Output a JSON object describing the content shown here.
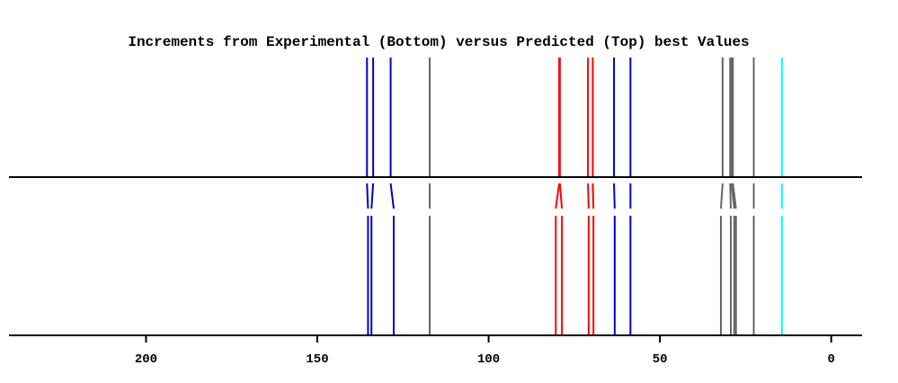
{
  "chart_data": {
    "type": "line",
    "title": "Increments from Experimental (Bottom) versus Predicted (Top) best Values",
    "xlabel": "",
    "ylabel": "",
    "xlim": [
      240,
      -9
    ],
    "x_ticks": [
      200,
      150,
      100,
      50,
      0
    ],
    "x_tick_labels": [
      "200",
      "150",
      "100",
      "50",
      "0"
    ],
    "reversed_x_axis": true,
    "grid": false,
    "legend": "none",
    "pairs": [
      {
        "predicted": 135.5,
        "experimental": 135.2,
        "color": "#0000cc"
      },
      {
        "predicted": 133.7,
        "experimental": 134.2,
        "color": "#0000cc"
      },
      {
        "predicted": 128.6,
        "experimental": 127.7,
        "color": "#0000cc"
      },
      {
        "predicted": 117.2,
        "experimental": 117.2,
        "color": "#666666"
      },
      {
        "predicted": 79.4,
        "experimental": 80.4,
        "color": "#ff0000"
      },
      {
        "predicted": 79.2,
        "experimental": 78.6,
        "color": "#ff0000"
      },
      {
        "predicted": 71.0,
        "experimental": 70.8,
        "color": "#ff0000"
      },
      {
        "predicted": 69.6,
        "experimental": 69.4,
        "color": "#ff0000"
      },
      {
        "predicted": 63.4,
        "experimental": 63.2,
        "color": "#0000cc"
      },
      {
        "predicted": 58.6,
        "experimental": 58.6,
        "color": "#0000cc"
      },
      {
        "predicted": 31.7,
        "experimental": 32.2,
        "color": "#666666"
      },
      {
        "predicted": 29.5,
        "experimental": 29.3,
        "color": "#666666"
      },
      {
        "predicted": 29.1,
        "experimental": 28.3,
        "color": "#666666"
      },
      {
        "predicted": 28.7,
        "experimental": 27.8,
        "color": "#666666"
      },
      {
        "predicted": 22.6,
        "experimental": 22.6,
        "color": "#666666"
      },
      {
        "predicted": 14.4,
        "experimental": 14.4,
        "color": "#00ffff"
      }
    ]
  }
}
